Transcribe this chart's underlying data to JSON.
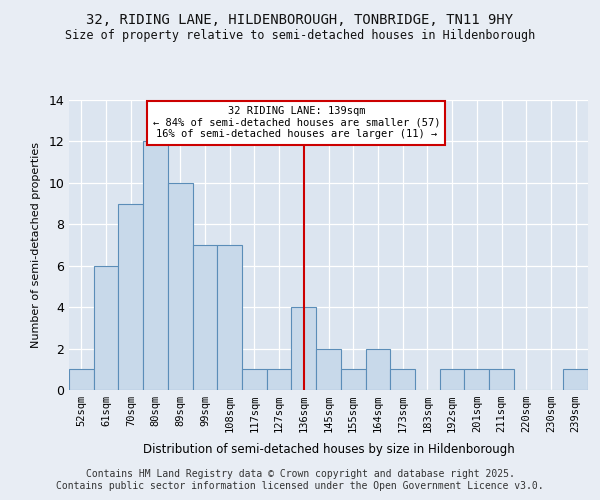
{
  "title1": "32, RIDING LANE, HILDENBOROUGH, TONBRIDGE, TN11 9HY",
  "title2": "Size of property relative to semi-detached houses in Hildenborough",
  "xlabel": "Distribution of semi-detached houses by size in Hildenborough",
  "ylabel": "Number of semi-detached properties",
  "bins": [
    "52sqm",
    "61sqm",
    "70sqm",
    "80sqm",
    "89sqm",
    "99sqm",
    "108sqm",
    "117sqm",
    "127sqm",
    "136sqm",
    "145sqm",
    "155sqm",
    "164sqm",
    "173sqm",
    "183sqm",
    "192sqm",
    "201sqm",
    "211sqm",
    "220sqm",
    "230sqm",
    "239sqm"
  ],
  "values": [
    1,
    6,
    9,
    12,
    10,
    7,
    7,
    1,
    1,
    4,
    2,
    1,
    2,
    1,
    0,
    1,
    1,
    1,
    0,
    0,
    1
  ],
  "bar_color": "#c8d9ea",
  "bar_edge_color": "#5b8db8",
  "vline_x_index": 9,
  "vline_color": "#cc0000",
  "annotation_text": "32 RIDING LANE: 139sqm\n← 84% of semi-detached houses are smaller (57)\n16% of semi-detached houses are larger (11) →",
  "annotation_box_edgecolor": "#cc0000",
  "ylim": [
    0,
    14
  ],
  "yticks": [
    0,
    2,
    4,
    6,
    8,
    10,
    12,
    14
  ],
  "footer": "Contains HM Land Registry data © Crown copyright and database right 2025.\nContains public sector information licensed under the Open Government Licence v3.0.",
  "bg_color": "#e8edf4",
  "plot_bg_color": "#dce5f0"
}
